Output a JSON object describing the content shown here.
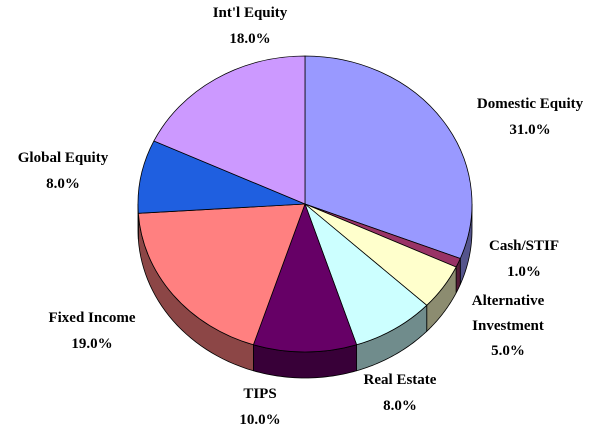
{
  "chart_data": {
    "type": "pie",
    "categories": [
      "Domestic Equity",
      "Cash/STIF",
      "Alternative Investment",
      "Real Estate",
      "TIPS",
      "Fixed Income",
      "Global Equity",
      "Int'l Equity"
    ],
    "values": [
      31,
      1,
      5,
      8,
      10,
      19,
      8,
      18
    ],
    "value_labels": [
      "31.0%",
      "1.0%",
      "5.0%",
      "8.0%",
      "10.0%",
      "19.0%",
      "8.0%",
      "18.0%"
    ],
    "colors": [
      "#9999ff",
      "#993366",
      "#ffffcc",
      "#ccffff",
      "#660066",
      "#ff8080",
      "#1f5fe0",
      "#cc99ff"
    ]
  }
}
